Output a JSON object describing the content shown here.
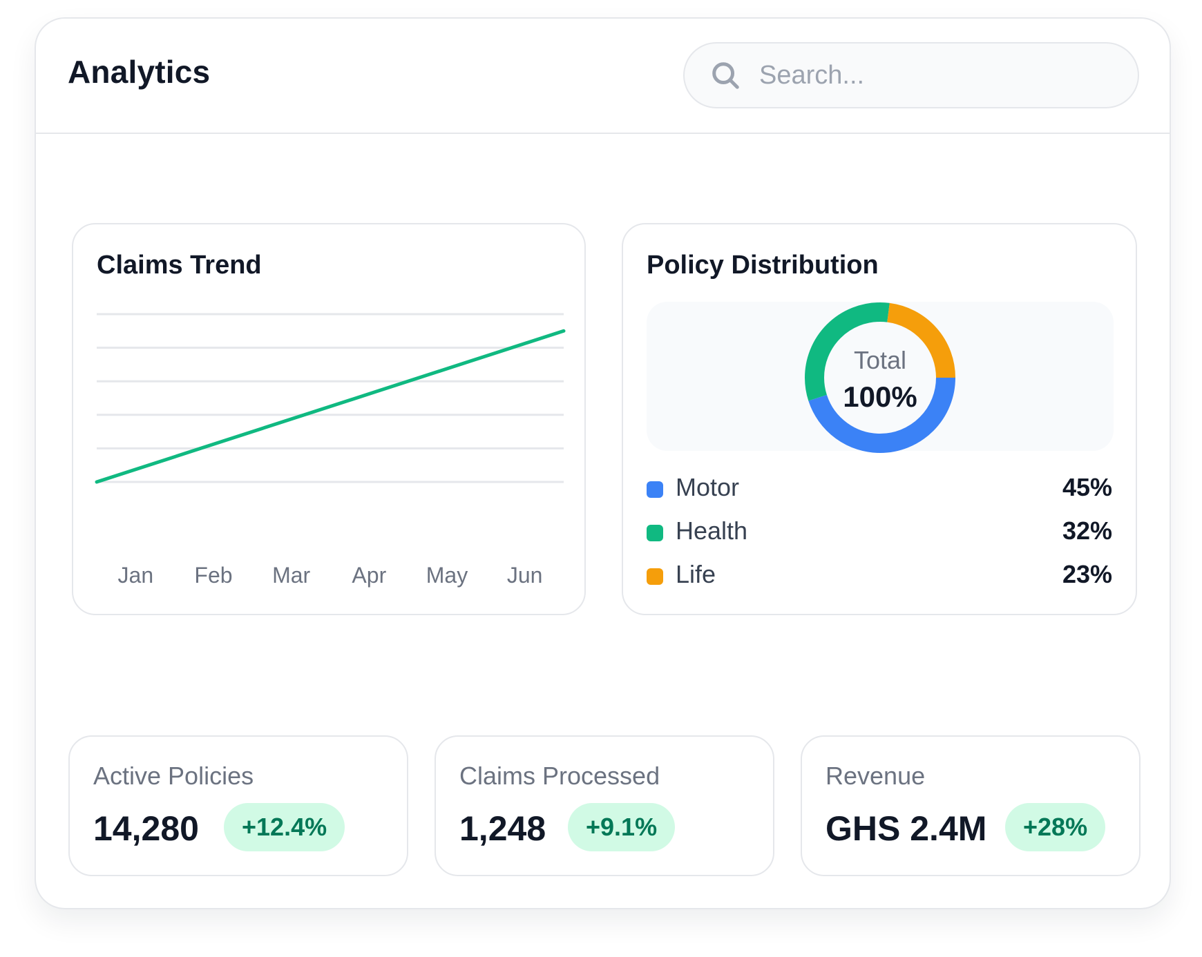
{
  "header": {
    "title": "Analytics",
    "search_placeholder": "Search..."
  },
  "claims_trend": {
    "title": "Claims Trend"
  },
  "policy_distribution": {
    "title": "Policy Distribution",
    "total_label": "Total",
    "total_value": "100%",
    "legend": [
      {
        "label": "Motor",
        "value": "45%",
        "color": "#3b82f6"
      },
      {
        "label": "Health",
        "value": "32%",
        "color": "#10b981"
      },
      {
        "label": "Life",
        "value": "23%",
        "color": "#f59e0b"
      }
    ]
  },
  "stats": [
    {
      "label": "Active Policies",
      "value": "14,280",
      "change": "+12.4%"
    },
    {
      "label": "Claims Processed",
      "value": "1,248",
      "change": "+9.1%"
    },
    {
      "label": "Revenue",
      "value": "GHS 2.4M",
      "change": "+28%"
    }
  ],
  "chart_data": [
    {
      "type": "line",
      "title": "Claims Trend",
      "categories": [
        "Jan",
        "Feb",
        "Mar",
        "Apr",
        "May",
        "Jun"
      ],
      "x_range": [
        "Jan",
        "Jun"
      ],
      "series": [
        {
          "values": [
            0.0,
            0.9,
            1.8,
            2.7,
            3.6,
            4.5
          ],
          "color": "#10b981"
        }
      ],
      "ylim": [
        0,
        5
      ],
      "grid": true,
      "y_tick_labels_visible": false
    },
    {
      "type": "pie",
      "variant": "donut",
      "title": "Policy Distribution",
      "slices": [
        {
          "label": "Motor",
          "value": 45,
          "color": "#3b82f6"
        },
        {
          "label": "Health",
          "value": 32,
          "color": "#10b981"
        },
        {
          "label": "Life",
          "value": 23,
          "color": "#f59e0b"
        }
      ],
      "legend": "bottom"
    }
  ]
}
